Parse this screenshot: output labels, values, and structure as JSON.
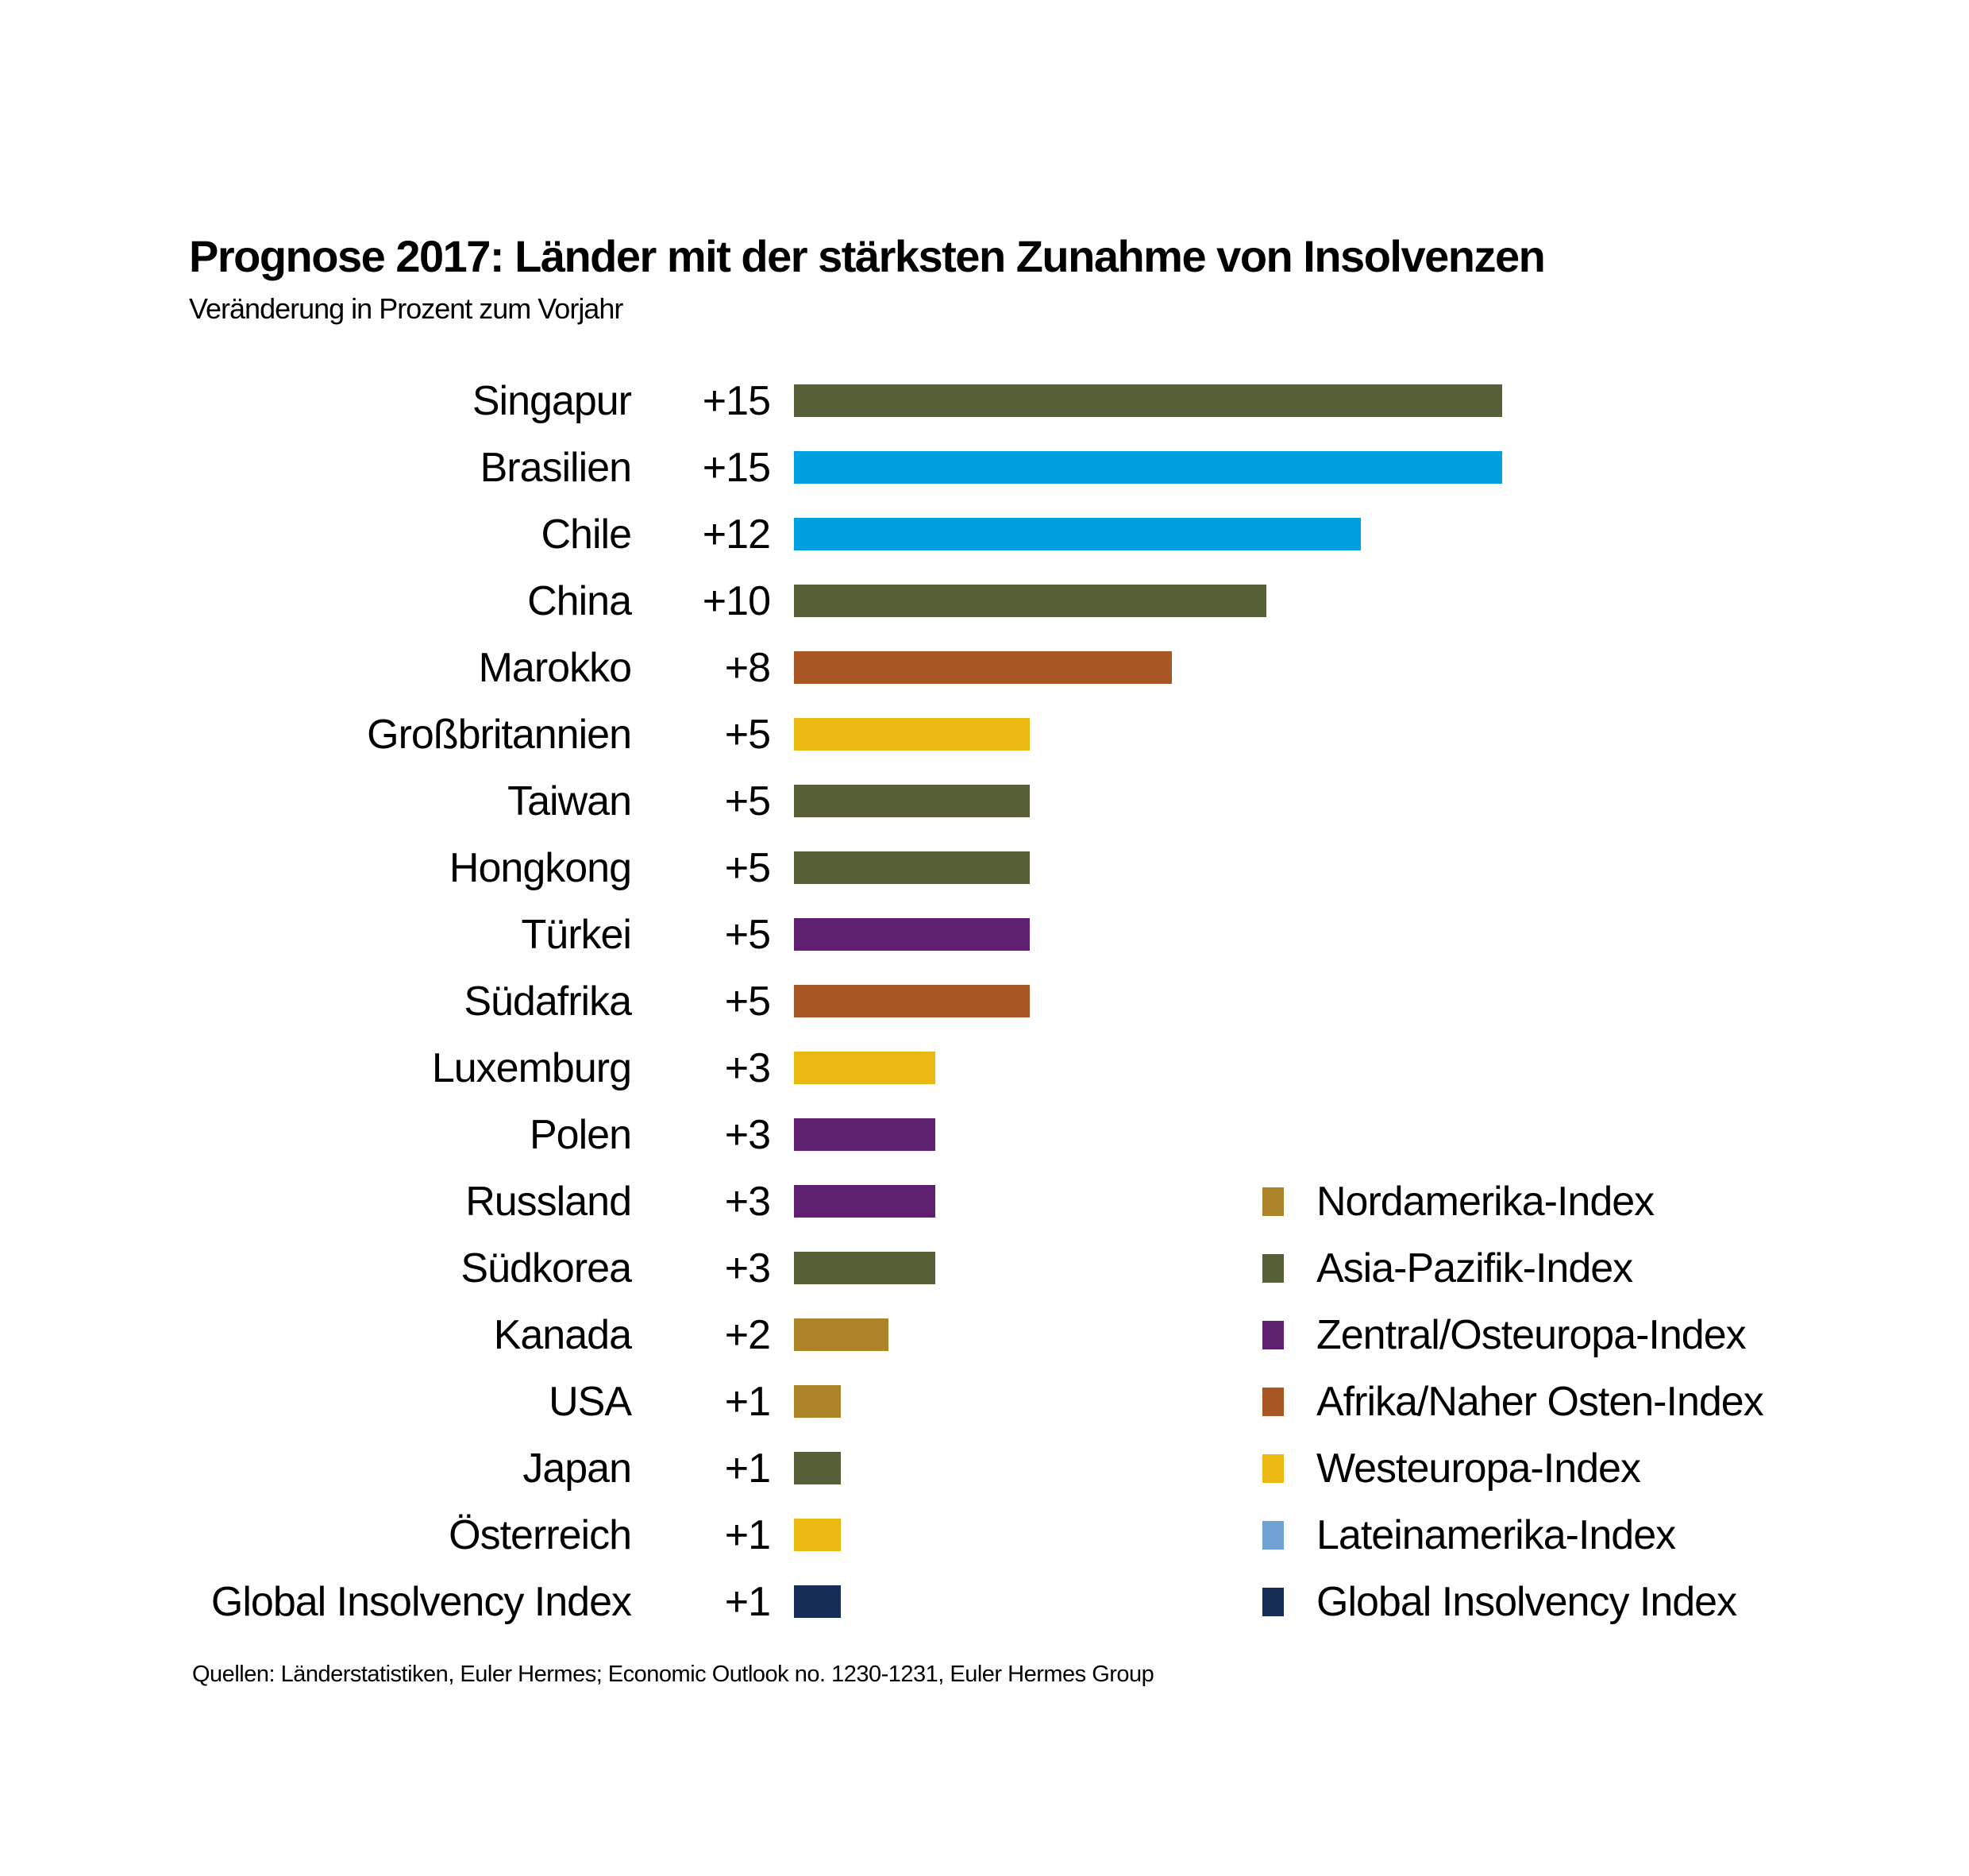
{
  "chart_data": {
    "type": "bar",
    "orientation": "horizontal",
    "title": "Prognose 2017: Länder mit der stärksten Zunahme von Insolvenzen",
    "subtitle": "Veränderung in Prozent zum Vorjahr",
    "source": "Quellen: Länderstatistiken, Euler Hermes; Economic Outlook no. 1230-1231, Euler Hermes Group",
    "xlim": [
      0,
      15
    ],
    "grid": false,
    "legend_position": "bottom-right",
    "categories": [
      {
        "name": "Singapur",
        "value": 15,
        "label": "+15",
        "region": "asia"
      },
      {
        "name": "Brasilien",
        "value": 15,
        "label": "+15",
        "region": "latam_bar"
      },
      {
        "name": "Chile",
        "value": 12,
        "label": "+12",
        "region": "latam_bar"
      },
      {
        "name": "China",
        "value": 10,
        "label": "+10",
        "region": "asia"
      },
      {
        "name": "Marokko",
        "value": 8,
        "label": "+8",
        "region": "africa"
      },
      {
        "name": "Großbritannien",
        "value": 5,
        "label": "+5",
        "region": "west"
      },
      {
        "name": "Taiwan",
        "value": 5,
        "label": "+5",
        "region": "asia"
      },
      {
        "name": "Hongkong",
        "value": 5,
        "label": "+5",
        "region": "asia"
      },
      {
        "name": "Türkei",
        "value": 5,
        "label": "+5",
        "region": "east"
      },
      {
        "name": "Südafrika",
        "value": 5,
        "label": "+5",
        "region": "africa"
      },
      {
        "name": "Luxemburg",
        "value": 3,
        "label": "+3",
        "region": "west"
      },
      {
        "name": "Polen",
        "value": 3,
        "label": "+3",
        "region": "east"
      },
      {
        "name": "Russland",
        "value": 3,
        "label": "+3",
        "region": "east"
      },
      {
        "name": "Südkorea",
        "value": 3,
        "label": "+3",
        "region": "asia"
      },
      {
        "name": "Kanada",
        "value": 2,
        "label": "+2",
        "region": "na"
      },
      {
        "name": "USA",
        "value": 1,
        "label": "+1",
        "region": "na"
      },
      {
        "name": "Japan",
        "value": 1,
        "label": "+1",
        "region": "asia"
      },
      {
        "name": "Österreich",
        "value": 1,
        "label": "+1",
        "region": "west"
      },
      {
        "name": "Global Insolvency Index",
        "value": 1,
        "label": "+1",
        "region": "global"
      }
    ],
    "colors": {
      "na": "#AD8428",
      "asia": "#556038",
      "east": "#5E1F6E",
      "africa": "#A85624",
      "west": "#EAB811",
      "latam": "#6FA2D2",
      "global": "#152D57",
      "latam_bar": "#009FDF"
    },
    "legend": [
      {
        "label": "Nordamerika-Index",
        "region": "na"
      },
      {
        "label": "Asia-Pazifik-Index",
        "region": "asia"
      },
      {
        "label": "Zentral/Osteuropa-Index",
        "region": "east"
      },
      {
        "label": "Afrika/Naher Osten-Index",
        "region": "africa"
      },
      {
        "label": "Westeuropa-Index",
        "region": "west"
      },
      {
        "label": "Lateinamerika-Index",
        "region": "latam"
      },
      {
        "label": "Global Insolvency Index",
        "region": "global"
      }
    ]
  }
}
